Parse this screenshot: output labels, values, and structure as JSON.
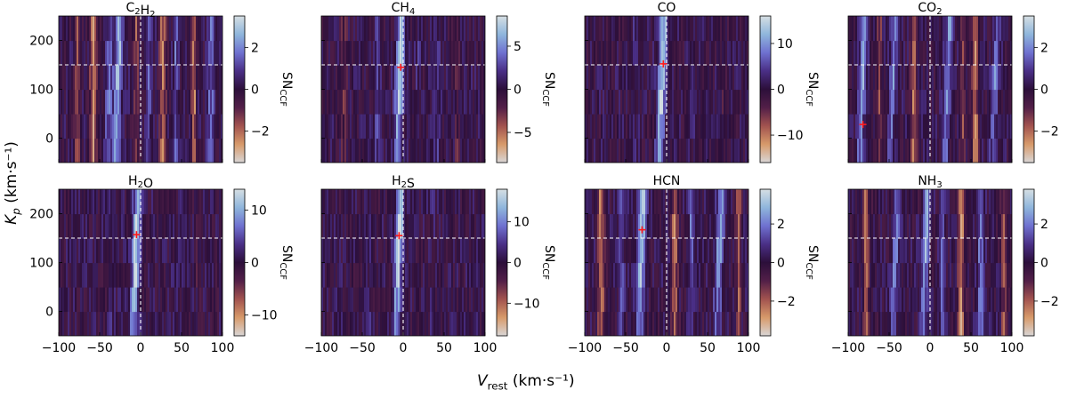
{
  "figure": {
    "xlabel": {
      "main": "V",
      "sub": "rest",
      "unit": " (km·s⁻¹)"
    },
    "ylabel": {
      "main": "K",
      "sub": "p",
      "unit": " (km·s⁻¹)"
    },
    "colorbar_label": {
      "main": "SN",
      "sub": "CCF"
    },
    "colormap": [
      "#d9d6d6",
      "#d79a6a",
      "#a2534f",
      "#521f48",
      "#2c0f3a",
      "#4a2f86",
      "#6f71d0",
      "#8fb6dc",
      "#d6dfe3"
    ]
  },
  "chart_data": [
    {
      "type": "heatmap",
      "title": {
        "main": "C",
        "sub1": "2",
        "mid": "H",
        "sub2": "2"
      },
      "xlim": [
        -100,
        100
      ],
      "ylim": [
        -50,
        250
      ],
      "xticks": [
        -100,
        -50,
        0,
        50,
        100
      ],
      "yticks": [
        0,
        100,
        200
      ],
      "reference_lines": {
        "x": 0,
        "y": 150
      },
      "peak_marker": null,
      "clim": [
        -3.5,
        3.5
      ],
      "cbar_ticks": [
        -2,
        0,
        2
      ],
      "streaks": [
        {
          "x": -27,
          "amp": 2.8,
          "w": 5
        },
        {
          "x": -38,
          "amp": 1.8,
          "w": 4
        },
        {
          "x": -58,
          "amp": -2.2,
          "w": 4
        },
        {
          "x": -77,
          "amp": -1.8,
          "w": 3
        },
        {
          "x": 27,
          "amp": -2.0,
          "w": 4
        },
        {
          "x": 43,
          "amp": 1.4,
          "w": 3
        },
        {
          "x": 65,
          "amp": -2.3,
          "w": 3
        },
        {
          "x": 86,
          "amp": 1.6,
          "w": 4
        },
        {
          "x": -5,
          "amp": -1.5,
          "w": 3
        },
        {
          "x": 10,
          "amp": 1.2,
          "w": 3
        }
      ]
    },
    {
      "type": "heatmap",
      "title": {
        "main": "CH",
        "sub1": "4",
        "mid": "",
        "sub2": ""
      },
      "xlim": [
        -100,
        100
      ],
      "ylim": [
        -50,
        250
      ],
      "xticks": [
        -100,
        -50,
        0,
        50,
        100
      ],
      "yticks": [
        0,
        100,
        200
      ],
      "reference_lines": {
        "x": 0,
        "y": 150
      },
      "peak_marker": {
        "x": -3,
        "y": 145
      },
      "clim": [
        -8.5,
        8.5
      ],
      "cbar_ticks": [
        -5,
        0,
        5
      ],
      "streaks": [
        {
          "x": -4,
          "amp": 7.5,
          "w": 5
        },
        {
          "x": -32,
          "amp": 2.0,
          "w": 4
        },
        {
          "x": 42,
          "amp": 1.5,
          "w": 4
        },
        {
          "x": -72,
          "amp": -2.0,
          "w": 4
        },
        {
          "x": 66,
          "amp": -1.5,
          "w": 4
        },
        {
          "x": 18,
          "amp": 1.2,
          "w": 3
        }
      ]
    },
    {
      "type": "heatmap",
      "title": {
        "main": "CO",
        "sub1": "",
        "mid": "",
        "sub2": ""
      },
      "xlim": [
        -100,
        100
      ],
      "ylim": [
        -50,
        250
      ],
      "xticks": [
        -100,
        -50,
        0,
        50,
        100
      ],
      "yticks": [
        0,
        100,
        200
      ],
      "reference_lines": {
        "x": 0,
        "y": 150
      },
      "peak_marker": {
        "x": -4,
        "y": 152
      },
      "clim": [
        -16,
        16
      ],
      "cbar_ticks": [
        -10,
        0,
        10
      ],
      "streaks": [
        {
          "x": -5,
          "amp": 15,
          "w": 5
        },
        {
          "x": -40,
          "amp": 1.5,
          "w": 4
        },
        {
          "x": 35,
          "amp": 1.2,
          "w": 4
        },
        {
          "x": 70,
          "amp": -1.5,
          "w": 4
        }
      ]
    },
    {
      "type": "heatmap",
      "title": {
        "main": "CO",
        "sub1": "2",
        "mid": "",
        "sub2": ""
      },
      "xlim": [
        -100,
        100
      ],
      "ylim": [
        -50,
        250
      ],
      "xticks": [
        -100,
        -50,
        0,
        50,
        100
      ],
      "yticks": [
        0,
        100,
        200
      ],
      "reference_lines": {
        "x": 0,
        "y": 150
      },
      "peak_marker": {
        "x": -82,
        "y": 28
      },
      "clim": [
        -3.5,
        3.5
      ],
      "cbar_ticks": [
        -2,
        0,
        2
      ],
      "streaks": [
        {
          "x": -82,
          "amp": 2.6,
          "w": 4
        },
        {
          "x": -45,
          "amp": 2.0,
          "w": 4
        },
        {
          "x": -20,
          "amp": -2.0,
          "w": 4
        },
        {
          "x": 22,
          "amp": 2.3,
          "w": 4
        },
        {
          "x": 55,
          "amp": -2.2,
          "w": 4
        },
        {
          "x": 80,
          "amp": 1.8,
          "w": 4
        },
        {
          "x": -62,
          "amp": -1.6,
          "w": 3
        },
        {
          "x": 40,
          "amp": -1.5,
          "w": 3
        }
      ]
    },
    {
      "type": "heatmap",
      "title": {
        "main": "H",
        "sub1": "2",
        "mid": "O",
        "sub2": ""
      },
      "xlim": [
        -100,
        100
      ],
      "ylim": [
        -50,
        250
      ],
      "xticks": [
        -100,
        -50,
        0,
        50,
        100
      ],
      "yticks": [
        0,
        100,
        200
      ],
      "reference_lines": {
        "x": 0,
        "y": 150
      },
      "peak_marker": {
        "x": -5,
        "y": 157
      },
      "clim": [
        -14,
        14
      ],
      "cbar_ticks": [
        -10,
        0,
        10
      ],
      "streaks": [
        {
          "x": -5,
          "amp": 13,
          "w": 5
        },
        {
          "x": -35,
          "amp": 1.5,
          "w": 4
        },
        {
          "x": 40,
          "amp": 1.2,
          "w": 4
        },
        {
          "x": 70,
          "amp": -1.5,
          "w": 4
        }
      ]
    },
    {
      "type": "heatmap",
      "title": {
        "main": "H",
        "sub1": "2",
        "mid": "S",
        "sub2": ""
      },
      "xlim": [
        -100,
        100
      ],
      "ylim": [
        -50,
        250
      ],
      "xticks": [
        -100,
        -50,
        0,
        50,
        100
      ],
      "yticks": [
        0,
        100,
        200
      ],
      "reference_lines": {
        "x": 0,
        "y": 150
      },
      "peak_marker": {
        "x": -5,
        "y": 155
      },
      "clim": [
        -18,
        18
      ],
      "cbar_ticks": [
        -10,
        0,
        10
      ],
      "streaks": [
        {
          "x": -5,
          "amp": 16,
          "w": 5
        },
        {
          "x": -40,
          "amp": 1.5,
          "w": 4
        },
        {
          "x": 35,
          "amp": 1.2,
          "w": 4
        }
      ]
    },
    {
      "type": "heatmap",
      "title": {
        "main": "HCN",
        "sub1": "",
        "mid": "",
        "sub2": ""
      },
      "xlim": [
        -100,
        100
      ],
      "ylim": [
        -50,
        250
      ],
      "xticks": [
        -100,
        -50,
        0,
        50,
        100
      ],
      "yticks": [
        0,
        100,
        200
      ],
      "reference_lines": {
        "x": 0,
        "y": 150
      },
      "peak_marker": {
        "x": -30,
        "y": 167
      },
      "clim": [
        -3.8,
        3.8
      ],
      "cbar_ticks": [
        -2,
        0,
        2
      ],
      "streaks": [
        {
          "x": -30,
          "amp": 3.2,
          "w": 5
        },
        {
          "x": 65,
          "amp": 2.4,
          "w": 5
        },
        {
          "x": -80,
          "amp": -2.4,
          "w": 4
        },
        {
          "x": 10,
          "amp": -2.2,
          "w": 4
        },
        {
          "x": 30,
          "amp": 1.6,
          "w": 3
        },
        {
          "x": -55,
          "amp": 1.4,
          "w": 3
        },
        {
          "x": 88,
          "amp": -1.8,
          "w": 3
        }
      ]
    },
    {
      "type": "heatmap",
      "title": {
        "main": "NH",
        "sub1": "3",
        "mid": "",
        "sub2": ""
      },
      "xlim": [
        -100,
        100
      ],
      "ylim": [
        -50,
        250
      ],
      "xticks": [
        -100,
        -50,
        0,
        50,
        100
      ],
      "yticks": [
        0,
        100,
        200
      ],
      "reference_lines": {
        "x": 0,
        "y": 150
      },
      "peak_marker": null,
      "clim": [
        -3.8,
        3.8
      ],
      "cbar_ticks": [
        -2,
        0,
        2
      ],
      "streaks": [
        {
          "x": -5,
          "amp": 2.6,
          "w": 4
        },
        {
          "x": 38,
          "amp": -2.6,
          "w": 4
        },
        {
          "x": -42,
          "amp": 2.0,
          "w": 4
        },
        {
          "x": 62,
          "amp": 1.9,
          "w": 4
        },
        {
          "x": -78,
          "amp": -2.0,
          "w": 4
        },
        {
          "x": 90,
          "amp": -1.6,
          "w": 3
        },
        {
          "x": 15,
          "amp": 1.4,
          "w": 3
        }
      ]
    }
  ]
}
